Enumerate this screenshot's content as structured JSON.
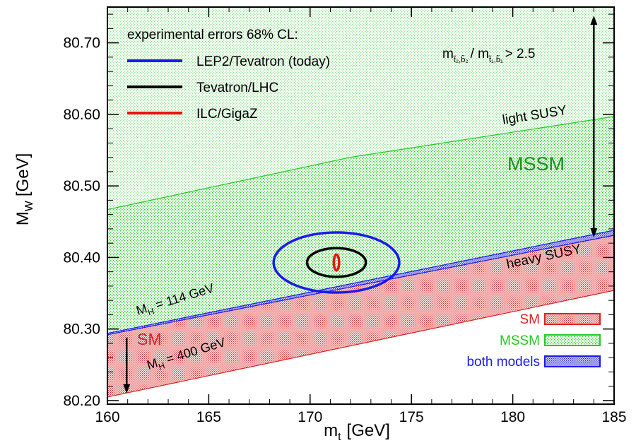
{
  "chart_data": {
    "type": "area",
    "x_label": "m",
    "x_label_sub": "t",
    "x_label_unit": "[GeV]",
    "y_label": "M",
    "y_label_sub": "W",
    "y_label_unit": "[GeV]",
    "xlim": [
      160,
      185
    ],
    "ylim": [
      80.195,
      80.75
    ],
    "x_ticks": [
      "160",
      "165",
      "170",
      "175",
      "180",
      "185"
    ],
    "y_ticks": [
      "80.20",
      "80.30",
      "80.40",
      "80.50",
      "80.60",
      "80.70"
    ],
    "legend_title": "experimental errors 68% CL:",
    "errors": [
      {
        "name": "LEP2/Tevatron (today)",
        "color": "#1a1aee",
        "center": [
          171.3,
          80.393
        ],
        "rx": 3.1,
        "ry": 0.042
      },
      {
        "name": "Tevatron/LHC",
        "color": "#000000",
        "center": [
          171.3,
          80.393
        ],
        "rx": 1.45,
        "ry": 0.02
      },
      {
        "name": "ILC/GigaZ",
        "color": "#ee1111",
        "center": [
          171.3,
          80.393
        ],
        "rx": 0.13,
        "ry": 0.011
      }
    ],
    "bands": [
      {
        "name": "MSSM",
        "color": "#22cc22",
        "lower": [
          [
            160,
            80.292
          ],
          [
            185,
            80.438
          ]
        ],
        "upper": [
          [
            160,
            80.467
          ],
          [
            172,
            80.54
          ],
          [
            185,
            80.597
          ]
        ]
      },
      {
        "name": "SM",
        "color": "#dd2222",
        "lower": [
          [
            160,
            80.205
          ],
          [
            185,
            80.354
          ]
        ],
        "upper": [
          [
            160,
            80.292
          ],
          [
            185,
            80.431
          ]
        ]
      },
      {
        "name": "both models",
        "color": "#1a1aee",
        "lower": [
          [
            160,
            80.292
          ],
          [
            185,
            80.431
          ]
        ],
        "upper": [
          [
            160,
            80.294
          ],
          [
            185,
            80.438
          ]
        ]
      }
    ],
    "annotations": {
      "ratio_m": "m",
      "ratio_num_sub": "t̃₂,b̃₂",
      "ratio_slash": "/ m",
      "ratio_den_sub": "t̃₁,b̃₁",
      "ratio_tail": "> 2.5",
      "light_susy": "light SUSY",
      "heavy_susy": "heavy SUSY",
      "mssm_label": "MSSM",
      "sm_label": "SM",
      "mh114_m": "M",
      "mh114_sub": "H",
      "mh114_tail": " = 114 GeV",
      "mh400_m": "M",
      "mh400_sub": "H",
      "mh400_tail": " = 400 GeV"
    },
    "box_legend": [
      {
        "name": "SM",
        "color": "#dd2222"
      },
      {
        "name": "MSSM",
        "color": "#22cc22"
      },
      {
        "name": "both models",
        "color": "#1a1aee"
      }
    ]
  }
}
